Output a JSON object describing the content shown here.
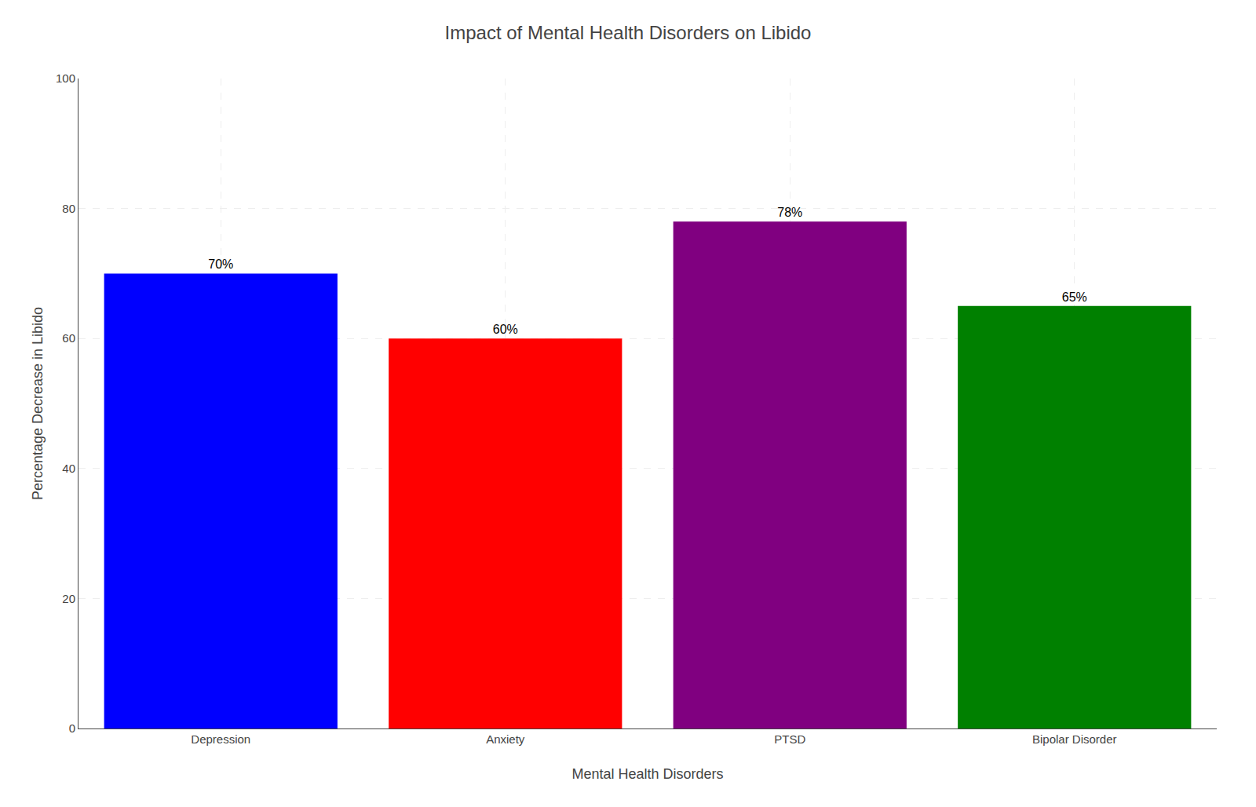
{
  "chart_data": {
    "type": "bar",
    "title": "Impact of Mental Health Disorders on Libido",
    "xlabel": "Mental Health Disorders",
    "ylabel": "Percentage Decrease in Libido",
    "categories": [
      "Depression",
      "Anxiety",
      "PTSD",
      "Bipolar Disorder"
    ],
    "values": [
      70,
      60,
      78,
      65
    ],
    "value_labels": [
      "70%",
      "60%",
      "78%",
      "65%"
    ],
    "data_labels": true,
    "colors": [
      "#0000ff",
      "#ff0000",
      "#800080",
      "#008000"
    ],
    "ylim": [
      0,
      100
    ],
    "yticks": [
      0,
      20,
      40,
      60,
      80,
      100
    ],
    "grid": true
  }
}
